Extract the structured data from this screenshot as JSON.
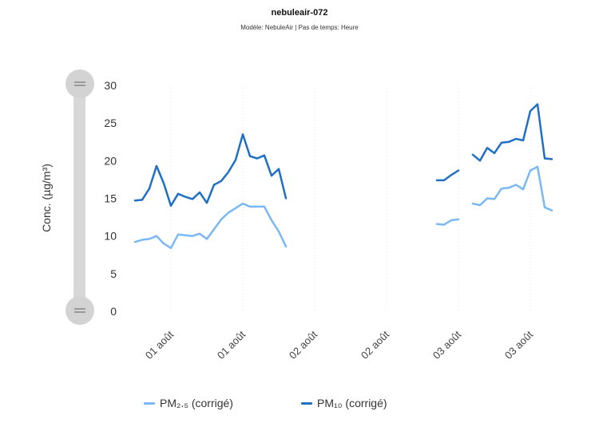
{
  "title": "nebuleair-072",
  "subtitle": "Modèle: NebuleAir | Pas de temps: Heure",
  "colors": {
    "pm25": "#7ab8f5",
    "pm10": "#1f6fc5",
    "grid": "#e6e6e6",
    "slider": "#d6d6d6"
  },
  "chart_data": {
    "type": "line",
    "ylabel": "Conc. (µg/m³)",
    "xlabel": "",
    "ylim": [
      0,
      30
    ],
    "yticks": [
      0,
      5,
      10,
      15,
      20,
      25,
      30
    ],
    "xlim": [
      0,
      56
    ],
    "xticks": [
      {
        "x": 5,
        "label": "01 août"
      },
      {
        "x": 15,
        "label": "01 août"
      },
      {
        "x": 25,
        "label": "02 août"
      },
      {
        "x": 35,
        "label": "02 août"
      },
      {
        "x": 45,
        "label": "03 août"
      },
      {
        "x": 55,
        "label": "03 août"
      }
    ],
    "grid": true,
    "legend_position": "bottom",
    "series": [
      {
        "name": "PM₂.₅ (corrigé)",
        "color_key": "pm25",
        "points": [
          [
            0,
            9.2
          ],
          [
            1,
            9.5
          ],
          [
            2,
            9.6
          ],
          [
            3,
            10.0
          ],
          [
            4,
            9.0
          ],
          [
            5,
            8.4
          ],
          [
            6,
            10.2
          ],
          [
            7,
            10.1
          ],
          [
            8,
            10.0
          ],
          [
            9,
            10.3
          ],
          [
            10,
            9.6
          ],
          [
            11,
            10.9
          ],
          [
            12,
            12.2
          ],
          [
            13,
            13.1
          ],
          [
            14,
            13.7
          ],
          [
            15,
            14.3
          ],
          [
            16,
            13.9
          ],
          [
            17,
            13.9
          ],
          [
            18,
            13.9
          ],
          [
            19,
            12.1
          ],
          [
            20,
            10.6
          ],
          [
            21,
            8.6
          ],
          null,
          [
            42,
            11.6
          ],
          [
            43,
            11.5
          ],
          [
            44,
            12.1
          ],
          [
            45,
            12.2
          ],
          null,
          [
            47,
            14.3
          ],
          [
            48,
            14.1
          ],
          [
            49,
            15.0
          ],
          [
            50,
            14.9
          ],
          [
            51,
            16.3
          ],
          [
            52,
            16.4
          ],
          [
            53,
            16.8
          ],
          [
            54,
            16.2
          ],
          [
            55,
            18.7
          ],
          [
            56,
            19.2
          ],
          [
            57,
            13.8
          ],
          [
            58,
            13.4
          ]
        ]
      },
      {
        "name": "PM₁₀ (corrigé)",
        "color_key": "pm10",
        "points": [
          [
            0,
            14.7
          ],
          [
            1,
            14.8
          ],
          [
            2,
            16.3
          ],
          [
            3,
            19.3
          ],
          [
            4,
            17.0
          ],
          [
            5,
            14.0
          ],
          [
            6,
            15.6
          ],
          [
            7,
            15.2
          ],
          [
            8,
            14.9
          ],
          [
            9,
            15.8
          ],
          [
            10,
            14.4
          ],
          [
            11,
            16.8
          ],
          [
            12,
            17.3
          ],
          [
            13,
            18.5
          ],
          [
            14,
            20.1
          ],
          [
            15,
            23.5
          ],
          [
            16,
            20.6
          ],
          [
            17,
            20.3
          ],
          [
            18,
            20.7
          ],
          [
            19,
            18.0
          ],
          [
            20,
            18.9
          ],
          [
            21,
            15.0
          ],
          null,
          [
            42,
            17.4
          ],
          [
            43,
            17.4
          ],
          [
            44,
            18.1
          ],
          [
            45,
            18.7
          ],
          null,
          [
            47,
            20.8
          ],
          [
            48,
            20.0
          ],
          [
            49,
            21.7
          ],
          [
            50,
            21.0
          ],
          [
            51,
            22.4
          ],
          [
            52,
            22.5
          ],
          [
            53,
            22.9
          ],
          [
            54,
            22.7
          ],
          [
            55,
            26.6
          ],
          [
            56,
            27.5
          ],
          [
            57,
            20.3
          ],
          [
            58,
            20.2
          ]
        ]
      }
    ]
  },
  "legend": [
    {
      "label": "PM₂.₅ (corrigé)",
      "color_key": "pm25"
    },
    {
      "label": "PM₁₀ (corrigé)",
      "color_key": "pm10"
    }
  ],
  "slider": {
    "range": [
      0,
      30
    ]
  }
}
